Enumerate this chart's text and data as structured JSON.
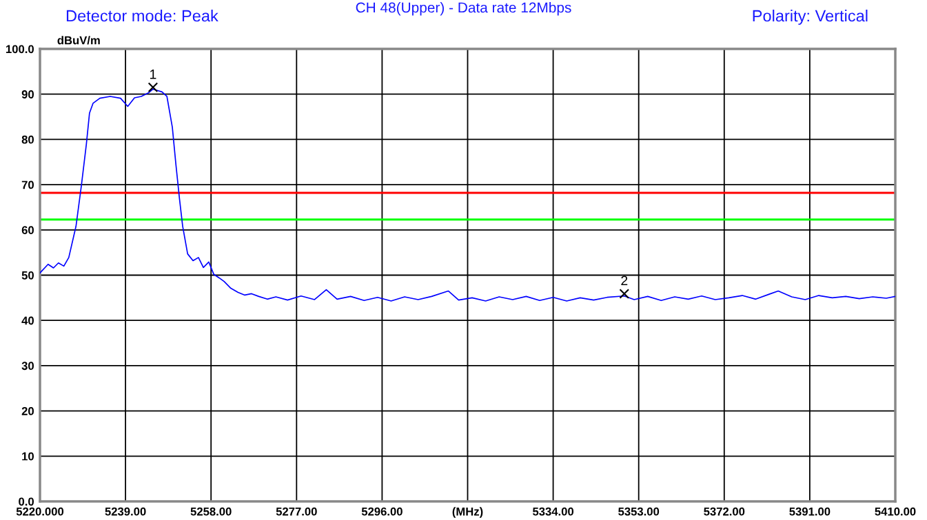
{
  "chart_data": {
    "type": "line",
    "title": "CH 48(Upper) - Data rate 12Mbps",
    "ylabel": "dBuV/m",
    "annotations": [
      "Detector mode: Peak",
      "Polarity: Vertical",
      {
        "text": "1",
        "x": 5245.1,
        "y": 91.5
      },
      {
        "text": "2",
        "x": 5349.8,
        "y": 45.9
      }
    ],
    "x": [
      5220,
      5221.8,
      5223,
      5224.1,
      5225.3,
      5226.4,
      5228.0,
      5229.2,
      5230.3,
      5231.0,
      5231.8,
      5233.3,
      5235.6,
      5237.9,
      5239.5,
      5241.0,
      5242.5,
      5244.1,
      5245.1,
      5247.1,
      5248.2,
      5249.4,
      5250.2,
      5251.0,
      5251.7,
      5252.8,
      5254.0,
      5255.2,
      5256.3,
      5257.5,
      5258.6,
      5259.8,
      5260.9,
      5262.4,
      5264.0,
      5265.5,
      5267.0,
      5268.6,
      5270.5,
      5272.4,
      5275,
      5278,
      5281,
      5283.6,
      5286,
      5289,
      5292,
      5295,
      5298,
      5301,
      5304,
      5307,
      5310.7,
      5313,
      5316,
      5319,
      5322,
      5325,
      5328,
      5331,
      5334,
      5337,
      5340,
      5343,
      5346,
      5349.8,
      5352,
      5355,
      5358,
      5361,
      5364,
      5367,
      5370,
      5373,
      5376,
      5379,
      5382,
      5384,
      5387,
      5390,
      5393,
      5396,
      5399,
      5402,
      5405,
      5408,
      5410
    ],
    "series": [
      {
        "color": "#0000ff",
        "values": [
          50.5,
          52.4,
          51.6,
          52.7,
          52.0,
          53.9,
          60.8,
          69.8,
          78.9,
          85.8,
          88.0,
          89.1,
          89.5,
          89.1,
          87.3,
          89.2,
          89.5,
          90.3,
          91.1,
          90.5,
          89.5,
          82.7,
          74.4,
          66.8,
          60.8,
          54.7,
          53.2,
          53.9,
          51.7,
          52.9,
          50.2,
          49.4,
          48.6,
          47.1,
          46.2,
          45.6,
          45.9,
          45.3,
          44.7,
          45.2,
          44.5,
          45.4,
          44.6,
          46.8,
          44.7,
          45.3,
          44.4,
          45.1,
          44.3,
          45.2,
          44.6,
          45.3,
          46.5,
          44.5,
          45.0,
          44.3,
          45.2,
          44.6,
          45.3,
          44.4,
          45.1,
          44.3,
          45.0,
          44.5,
          45.1,
          45.4,
          44.6,
          45.3,
          44.4,
          45.2,
          44.7,
          45.4,
          44.6,
          45.0,
          45.5,
          44.7,
          45.8,
          46.5,
          45.2,
          44.6,
          45.5,
          45.0,
          45.3,
          44.8,
          45.2,
          44.9,
          45.3
        ]
      }
    ],
    "xlim": [
      5220,
      5410
    ],
    "xticks": [
      {
        "value": 5220,
        "label": "5220.000"
      },
      {
        "value": 5239,
        "label": "5239.00"
      },
      {
        "value": 5258,
        "label": "5258.00"
      },
      {
        "value": 5277,
        "label": "5277.00"
      },
      {
        "value": 5296,
        "label": "5296.00"
      },
      {
        "value": 5315,
        "label": "(MHz)"
      },
      {
        "value": 5334,
        "label": "5334.00"
      },
      {
        "value": 5353,
        "label": "5353.00"
      },
      {
        "value": 5372,
        "label": "5372.00"
      },
      {
        "value": 5391,
        "label": "5391.00"
      },
      {
        "value": 5410,
        "label": "5410.00"
      }
    ],
    "ylim": [
      0,
      100
    ],
    "yticks": [
      {
        "value": 0,
        "label": "0.0"
      },
      10,
      20,
      30,
      40,
      50,
      60,
      70,
      80,
      90,
      {
        "value": 100,
        "label": "100.0"
      }
    ],
    "ref_lines": [
      {
        "axis": "y",
        "value": 68.2,
        "color": "#ff0000"
      },
      {
        "axis": "y",
        "value": 62.3,
        "color": "#00ff00"
      }
    ],
    "grid": true,
    "legend": false,
    "marker": "none",
    "line_style": "solid"
  }
}
